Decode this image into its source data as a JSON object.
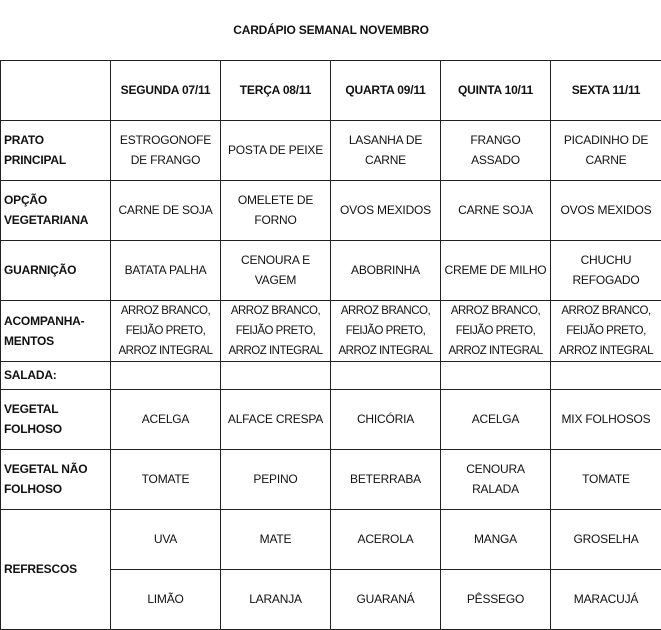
{
  "title": "CARDÁPIO SEMANAL NOVEMBRO",
  "days": [
    "SEGUNDA 07/11",
    "TERÇA 08/11",
    "QUARTA 09/11",
    "QUINTA  10/11",
    "SEXTA 11/11"
  ],
  "rows": [
    {
      "label": [
        "PRATO",
        "PRINCIPAL"
      ],
      "cells": [
        [
          "ESTROGONOFE",
          "DE FRANGO"
        ],
        [
          "POSTA DE PEIXE"
        ],
        [
          "LASANHA DE",
          "CARNE"
        ],
        [
          "FRANGO",
          "ASSADO"
        ],
        [
          "PICADINHO DE",
          "CARNE"
        ]
      ]
    },
    {
      "label": [
        "OPÇÃO",
        "VEGETARIANA"
      ],
      "cells": [
        [
          "CARNE DE SOJA"
        ],
        [
          "OMELETE DE",
          "FORNO"
        ],
        [
          "OVOS MEXIDOS"
        ],
        [
          "CARNE SOJA"
        ],
        [
          "OVOS MEXIDOS"
        ]
      ]
    },
    {
      "label": [
        "GUARNIÇÃO"
      ],
      "cells": [
        [
          "BATATA PALHA"
        ],
        [
          "CENOURA E",
          "VAGEM"
        ],
        [
          "ABOBRINHA"
        ],
        [
          "CREME DE MILHO"
        ],
        [
          "CHUCHU",
          "REFOGADO"
        ]
      ]
    },
    {
      "label": [
        "ACOMPANHA-",
        "MENTOS"
      ],
      "cells": [
        [
          "ARROZ BRANCO,",
          "FEIJÃO PRETO,",
          "ARROZ INTEGRAL"
        ],
        [
          "ARROZ BRANCO,",
          "FEIJÃO PRETO,",
          "ARROZ INTEGRAL"
        ],
        [
          "ARROZ BRANCO,",
          "FEIJÃO PRETO,",
          "ARROZ INTEGRAL"
        ],
        [
          "ARROZ BRANCO,",
          "FEIJÃO PRETO,",
          "ARROZ INTEGRAL"
        ],
        [
          "ARROZ BRANCO,",
          "FEIJÃO PRETO,",
          "ARROZ INTEGRAL"
        ]
      ]
    },
    {
      "label": [
        "SALADA:"
      ],
      "cells": [
        [],
        [],
        [],
        [],
        []
      ]
    },
    {
      "label": [
        "VEGETAL",
        "FOLHOSO"
      ],
      "cells": [
        [
          "ACELGA"
        ],
        [
          "ALFACE CRESPA"
        ],
        [
          "CHICÓRIA"
        ],
        [
          "ACELGA"
        ],
        [
          "MIX FOLHOSOS"
        ]
      ]
    },
    {
      "label": [
        "VEGETAL NÃO",
        "FOLHOSO"
      ],
      "cells": [
        [
          "TOMATE"
        ],
        [
          "PEPINO"
        ],
        [
          "BETERRABA"
        ],
        [
          "CENOURA",
          "RALADA"
        ],
        [
          "TOMATE"
        ]
      ]
    }
  ],
  "refrescos": {
    "label": "REFRESCOS",
    "row1": [
      "UVA",
      "MATE",
      "ACEROLA",
      "MANGA",
      "GROSELHA"
    ],
    "row2": [
      "LIMÃO",
      "LARANJA",
      "GUARANÁ",
      "PÊSSEGO",
      "MARACUJÁ"
    ]
  }
}
